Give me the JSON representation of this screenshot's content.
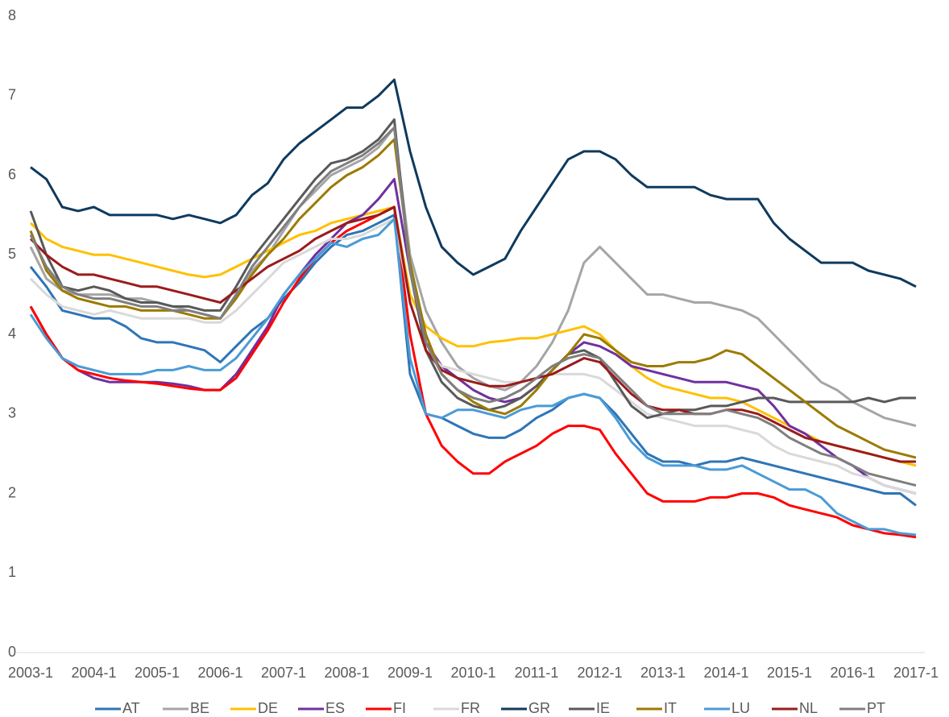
{
  "chart_data": {
    "type": "line",
    "categories": [
      "2003-1",
      null,
      null,
      null,
      "2004-1",
      null,
      null,
      null,
      "2005-1",
      null,
      null,
      null,
      "2006-1",
      null,
      null,
      null,
      "2007-1",
      null,
      null,
      null,
      "2008-1",
      null,
      null,
      null,
      "2009-1",
      null,
      null,
      null,
      "2010-1",
      null,
      null,
      null,
      "2011-1",
      null,
      null,
      null,
      "2012-1",
      null,
      null,
      null,
      "2013-1",
      null,
      null,
      null,
      "2014-1",
      null,
      null,
      null,
      "2015-1",
      null,
      null,
      null,
      "2016-1",
      null,
      null,
      null,
      "2017-1"
    ],
    "ylim": [
      0,
      8
    ],
    "yticks": [
      0,
      1,
      2,
      3,
      4,
      5,
      6,
      7,
      8
    ],
    "grid": false,
    "legend": "bottom",
    "series": [
      {
        "name": "AT",
        "color": "#2e75b6",
        "values": [
          4.85,
          4.6,
          4.3,
          4.25,
          4.2,
          4.2,
          4.1,
          3.95,
          3.9,
          3.9,
          3.85,
          3.8,
          3.65,
          3.85,
          4.05,
          4.2,
          4.45,
          4.65,
          4.9,
          5.1,
          5.25,
          5.3,
          5.4,
          5.5,
          3.5,
          3.0,
          2.95,
          2.85,
          2.75,
          2.7,
          2.7,
          2.8,
          2.95,
          3.05,
          3.2,
          3.25,
          3.2,
          3.0,
          2.75,
          2.5,
          2.4,
          2.4,
          2.35,
          2.4,
          2.4,
          2.45,
          2.4,
          2.35,
          2.3,
          2.25,
          2.2,
          2.15,
          2.1,
          2.05,
          2.0,
          2.0,
          1.85
        ]
      },
      {
        "name": "BE",
        "color": "#a5a5a5",
        "values": [
          5.1,
          4.7,
          4.55,
          4.5,
          4.5,
          4.5,
          4.45,
          4.45,
          4.4,
          4.35,
          4.3,
          4.25,
          4.2,
          4.5,
          4.8,
          5.0,
          5.3,
          5.6,
          5.8,
          6.0,
          6.1,
          6.2,
          6.35,
          6.6,
          5.0,
          4.3,
          3.9,
          3.6,
          3.45,
          3.35,
          3.3,
          3.4,
          3.6,
          3.9,
          4.3,
          4.9,
          5.1,
          4.9,
          4.7,
          4.5,
          4.5,
          4.45,
          4.4,
          4.4,
          4.35,
          4.3,
          4.2,
          4.0,
          3.8,
          3.6,
          3.4,
          3.3,
          3.15,
          3.05,
          2.95,
          2.9,
          2.85
        ]
      },
      {
        "name": "DE",
        "color": "#ffc000",
        "values": [
          5.4,
          5.2,
          5.1,
          5.05,
          5.0,
          5.0,
          4.95,
          4.9,
          4.85,
          4.8,
          4.75,
          4.72,
          4.75,
          4.85,
          4.95,
          5.05,
          5.15,
          5.25,
          5.3,
          5.4,
          5.45,
          5.5,
          5.55,
          5.6,
          4.5,
          4.1,
          3.95,
          3.85,
          3.85,
          3.9,
          3.92,
          3.95,
          3.95,
          4.0,
          4.05,
          4.1,
          4.0,
          3.8,
          3.6,
          3.45,
          3.35,
          3.3,
          3.25,
          3.2,
          3.2,
          3.15,
          3.05,
          2.95,
          2.85,
          2.75,
          2.65,
          2.6,
          2.55,
          2.5,
          2.45,
          2.4,
          2.35
        ]
      },
      {
        "name": "ES",
        "color": "#7030a0",
        "values": [
          4.35,
          4.0,
          3.7,
          3.55,
          3.45,
          3.4,
          3.4,
          3.4,
          3.4,
          3.38,
          3.35,
          3.3,
          3.3,
          3.5,
          3.8,
          4.1,
          4.5,
          4.75,
          5.0,
          5.2,
          5.4,
          5.5,
          5.7,
          5.95,
          4.8,
          3.9,
          3.6,
          3.45,
          3.3,
          3.2,
          3.15,
          3.2,
          3.35,
          3.55,
          3.75,
          3.9,
          3.85,
          3.75,
          3.6,
          3.55,
          3.5,
          3.45,
          3.4,
          3.4,
          3.4,
          3.35,
          3.3,
          3.1,
          2.85,
          2.75,
          2.6,
          2.45,
          2.35,
          2.2,
          2.1,
          2.05,
          2.0
        ]
      },
      {
        "name": "FI",
        "color": "#ff0000",
        "values": [
          4.35,
          4.0,
          3.7,
          3.55,
          3.5,
          3.45,
          3.42,
          3.4,
          3.38,
          3.35,
          3.32,
          3.3,
          3.3,
          3.45,
          3.75,
          4.05,
          4.4,
          4.7,
          4.95,
          5.15,
          5.3,
          5.4,
          5.5,
          5.6,
          4.0,
          3.0,
          2.6,
          2.4,
          2.25,
          2.25,
          2.4,
          2.5,
          2.6,
          2.75,
          2.85,
          2.85,
          2.8,
          2.5,
          2.25,
          2.0,
          1.9,
          1.9,
          1.9,
          1.95,
          1.95,
          2.0,
          2.0,
          1.95,
          1.85,
          1.8,
          1.75,
          1.7,
          1.6,
          1.55,
          1.5,
          1.48,
          1.45
        ]
      },
      {
        "name": "FR",
        "color": "#d9d9d9",
        "values": [
          4.7,
          4.5,
          4.35,
          4.3,
          4.25,
          4.3,
          4.25,
          4.2,
          4.2,
          4.2,
          4.2,
          4.15,
          4.15,
          4.3,
          4.5,
          4.7,
          4.9,
          5.0,
          5.1,
          5.2,
          5.2,
          5.25,
          5.35,
          5.45,
          4.4,
          3.8,
          3.6,
          3.55,
          3.5,
          3.45,
          3.4,
          3.4,
          3.45,
          3.5,
          3.5,
          3.5,
          3.45,
          3.3,
          3.15,
          3.0,
          2.95,
          2.9,
          2.85,
          2.85,
          2.85,
          2.8,
          2.75,
          2.6,
          2.5,
          2.45,
          2.4,
          2.35,
          2.25,
          2.2,
          2.1,
          2.05,
          2.0
        ]
      },
      {
        "name": "GR",
        "color": "#0e3a5e",
        "values": [
          6.1,
          5.95,
          5.6,
          5.55,
          5.6,
          5.5,
          5.5,
          5.5,
          5.5,
          5.45,
          5.5,
          5.45,
          5.4,
          5.5,
          5.75,
          5.9,
          6.2,
          6.4,
          6.55,
          6.7,
          6.85,
          6.85,
          7.0,
          7.2,
          6.3,
          5.6,
          5.1,
          4.9,
          4.75,
          4.85,
          4.95,
          5.3,
          5.6,
          5.9,
          6.2,
          6.3,
          6.3,
          6.2,
          6.0,
          5.85,
          5.85,
          5.85,
          5.85,
          5.75,
          5.7,
          5.7,
          5.7,
          5.4,
          5.2,
          5.05,
          4.9,
          4.9,
          4.9,
          4.8,
          4.75,
          4.7,
          4.6
        ]
      },
      {
        "name": "IE",
        "color": "#595959",
        "values": [
          5.55,
          5.0,
          4.6,
          4.55,
          4.6,
          4.55,
          4.45,
          4.4,
          4.4,
          4.35,
          4.35,
          4.3,
          4.3,
          4.6,
          4.95,
          5.2,
          5.45,
          5.7,
          5.95,
          6.15,
          6.2,
          6.3,
          6.45,
          6.7,
          4.8,
          3.8,
          3.4,
          3.2,
          3.1,
          3.05,
          3.1,
          3.2,
          3.35,
          3.55,
          3.75,
          3.8,
          3.7,
          3.4,
          3.1,
          2.95,
          3.0,
          3.05,
          3.05,
          3.1,
          3.1,
          3.15,
          3.2,
          3.2,
          3.15,
          3.15,
          3.15,
          3.15,
          3.15,
          3.2,
          3.15,
          3.2,
          3.2
        ]
      },
      {
        "name": "IT",
        "color": "#9c7a00",
        "values": [
          5.3,
          4.8,
          4.55,
          4.45,
          4.4,
          4.35,
          4.35,
          4.3,
          4.3,
          4.3,
          4.25,
          4.2,
          4.2,
          4.45,
          4.75,
          5.0,
          5.2,
          5.45,
          5.65,
          5.85,
          6.0,
          6.1,
          6.25,
          6.45,
          4.9,
          4.0,
          3.5,
          3.3,
          3.15,
          3.05,
          3.0,
          3.1,
          3.3,
          3.55,
          3.75,
          4.0,
          3.95,
          3.8,
          3.65,
          3.6,
          3.6,
          3.65,
          3.65,
          3.7,
          3.8,
          3.75,
          3.6,
          3.45,
          3.3,
          3.15,
          3.0,
          2.85,
          2.75,
          2.65,
          2.55,
          2.5,
          2.45
        ]
      },
      {
        "name": "LU",
        "color": "#4a9bd6",
        "values": [
          4.25,
          3.95,
          3.7,
          3.6,
          3.55,
          3.5,
          3.5,
          3.5,
          3.55,
          3.55,
          3.6,
          3.55,
          3.55,
          3.7,
          3.95,
          4.2,
          4.5,
          4.75,
          4.95,
          5.15,
          5.1,
          5.2,
          5.25,
          5.45,
          3.7,
          3.0,
          2.95,
          3.05,
          3.05,
          3.0,
          2.95,
          3.05,
          3.1,
          3.1,
          3.2,
          3.25,
          3.2,
          2.95,
          2.65,
          2.45,
          2.35,
          2.35,
          2.35,
          2.3,
          2.3,
          2.35,
          2.25,
          2.15,
          2.05,
          2.05,
          1.95,
          1.75,
          1.65,
          1.55,
          1.55,
          1.5,
          1.48
        ]
      },
      {
        "name": "NL",
        "color": "#9b1b1b",
        "values": [
          5.2,
          5.0,
          4.85,
          4.75,
          4.75,
          4.7,
          4.65,
          4.6,
          4.6,
          4.55,
          4.5,
          4.45,
          4.4,
          4.55,
          4.7,
          4.85,
          4.95,
          5.05,
          5.2,
          5.3,
          5.4,
          5.45,
          5.5,
          5.6,
          4.4,
          3.8,
          3.55,
          3.45,
          3.4,
          3.35,
          3.35,
          3.4,
          3.45,
          3.5,
          3.6,
          3.7,
          3.65,
          3.45,
          3.25,
          3.1,
          3.05,
          3.05,
          3.0,
          3.0,
          3.05,
          3.05,
          3.0,
          2.9,
          2.8,
          2.7,
          2.65,
          2.6,
          2.55,
          2.5,
          2.45,
          2.4,
          2.4
        ]
      },
      {
        "name": "PT",
        "color": "#7f7f7f",
        "values": [
          5.25,
          4.85,
          4.6,
          4.5,
          4.45,
          4.45,
          4.4,
          4.35,
          4.35,
          4.3,
          4.3,
          4.25,
          4.2,
          4.5,
          4.85,
          5.1,
          5.35,
          5.6,
          5.85,
          6.05,
          6.15,
          6.25,
          6.4,
          6.6,
          4.8,
          3.9,
          3.5,
          3.3,
          3.2,
          3.15,
          3.2,
          3.3,
          3.45,
          3.6,
          3.7,
          3.75,
          3.7,
          3.5,
          3.3,
          3.1,
          3.0,
          3.0,
          3.0,
          3.0,
          3.05,
          3.0,
          2.95,
          2.85,
          2.7,
          2.6,
          2.5,
          2.45,
          2.35,
          2.25,
          2.2,
          2.15,
          2.1
        ]
      }
    ]
  }
}
